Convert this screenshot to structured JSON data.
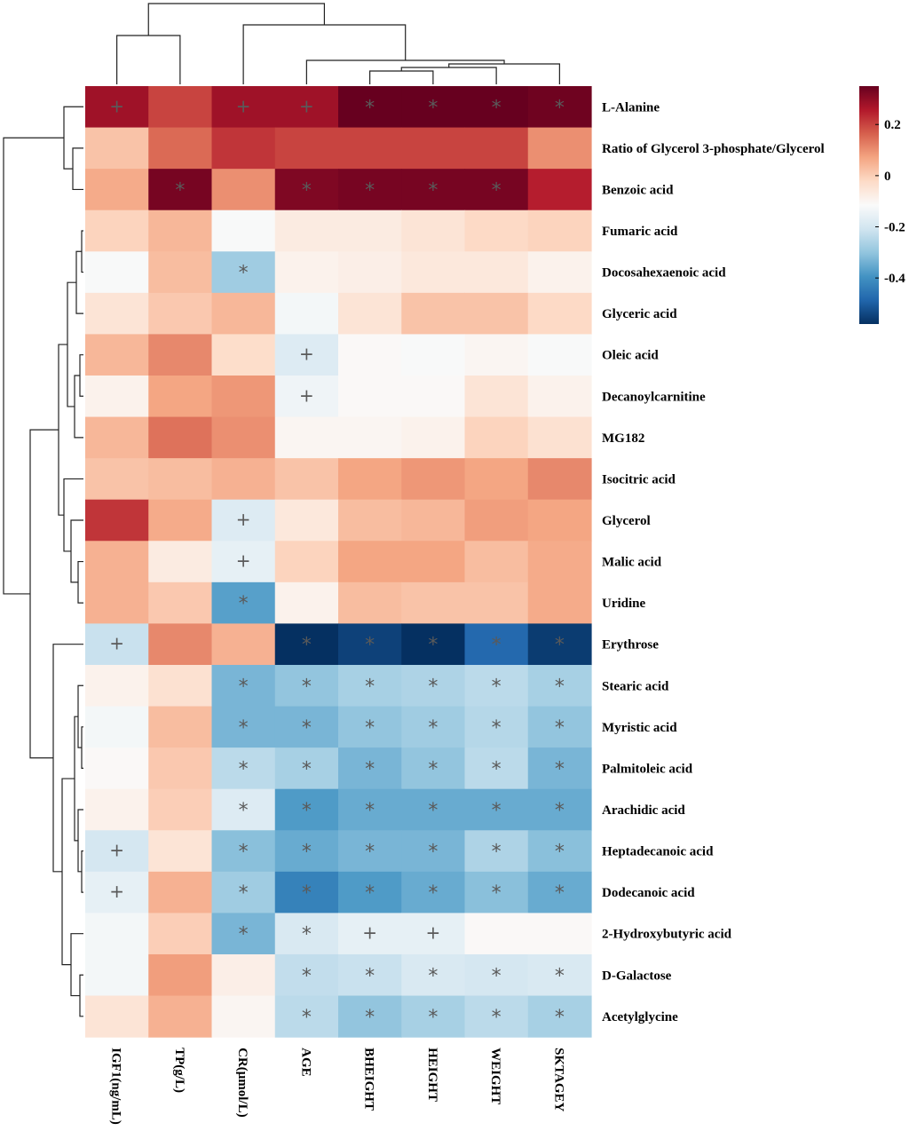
{
  "chart_data": {
    "type": "heatmap",
    "title": "",
    "columns": [
      "IGF1(ng/mL)",
      "TP(g/L)",
      "CR(μmol/L)",
      "AGE",
      "BHEIGHT",
      "HEIGHT",
      "WEIGHT",
      "SKTAGEY"
    ],
    "rows": [
      "L-Alanine",
      "Ratio of Glycerol 3-phosphate/Glycerol",
      "Benzoic acid",
      "Fumaric acid",
      "Docosahexaenoic acid",
      "Glyceric acid",
      "Oleic acid",
      "Decanoylcarnitine",
      "MG182",
      "Isocitric acid",
      "Glycerol",
      "Malic acid",
      "Uridine",
      "Erythrose",
      "Stearic acid",
      "Myristic acid",
      "Palmitoleic acid",
      "Arachidic acid",
      "Heptadecanoic acid",
      "Dodecanoic acid",
      "2-Hydroxybutyric acid",
      "D-Galactose",
      "Acetylglycine"
    ],
    "values": [
      [
        0.28,
        0.2,
        0.28,
        0.28,
        0.35,
        0.35,
        0.35,
        0.34
      ],
      [
        0.02,
        0.15,
        0.22,
        0.2,
        0.2,
        0.2,
        0.2,
        0.1
      ],
      [
        0.06,
        0.33,
        0.1,
        0.32,
        0.33,
        0.33,
        0.33,
        0.25
      ],
      [
        -0.01,
        0.04,
        -0.12,
        -0.07,
        -0.07,
        -0.05,
        -0.02,
        -0.01
      ],
      [
        -0.12,
        0.03,
        -0.28,
        -0.09,
        -0.08,
        -0.06,
        -0.06,
        -0.09
      ],
      [
        -0.05,
        0.01,
        0.04,
        -0.13,
        -0.05,
        0.02,
        0.02,
        -0.02
      ],
      [
        0.04,
        0.11,
        -0.03,
        -0.18,
        -0.11,
        -0.12,
        -0.1,
        -0.12
      ],
      [
        -0.09,
        0.07,
        0.09,
        -0.14,
        -0.11,
        -0.11,
        -0.05,
        -0.09
      ],
      [
        0.04,
        0.14,
        0.1,
        -0.1,
        -0.1,
        -0.09,
        -0.01,
        -0.04
      ],
      [
        0.02,
        0.03,
        0.05,
        0.02,
        0.07,
        0.09,
        0.07,
        0.11
      ],
      [
        0.22,
        0.06,
        -0.18,
        -0.06,
        0.03,
        0.04,
        0.08,
        0.07
      ],
      [
        0.05,
        -0.07,
        -0.16,
        -0.01,
        0.07,
        0.07,
        0.03,
        0.06
      ],
      [
        0.05,
        0.01,
        -0.37,
        -0.09,
        0.03,
        0.02,
        0.02,
        0.06
      ],
      [
        -0.22,
        0.11,
        0.05,
        -0.58,
        -0.55,
        -0.58,
        -0.48,
        -0.56
      ],
      [
        -0.09,
        -0.04,
        -0.33,
        -0.3,
        -0.27,
        -0.26,
        -0.24,
        -0.27
      ],
      [
        -0.13,
        0.03,
        -0.33,
        -0.33,
        -0.3,
        -0.28,
        -0.25,
        -0.3
      ],
      [
        -0.11,
        0.01,
        -0.24,
        -0.27,
        -0.33,
        -0.3,
        -0.24,
        -0.33
      ],
      [
        -0.09,
        0.0,
        -0.18,
        -0.38,
        -0.35,
        -0.35,
        -0.35,
        -0.35
      ],
      [
        -0.2,
        -0.05,
        -0.31,
        -0.35,
        -0.33,
        -0.33,
        -0.26,
        -0.31
      ],
      [
        -0.16,
        0.05,
        -0.28,
        -0.43,
        -0.38,
        -0.35,
        -0.31,
        -0.35
      ],
      [
        -0.13,
        0.0,
        -0.33,
        -0.19,
        -0.16,
        -0.16,
        -0.11,
        -0.11
      ],
      [
        -0.13,
        0.08,
        -0.08,
        -0.23,
        -0.22,
        -0.19,
        -0.2,
        -0.19
      ],
      [
        -0.05,
        0.05,
        -0.1,
        -0.24,
        -0.3,
        -0.27,
        -0.24,
        -0.27
      ]
    ],
    "significance": [
      [
        "+",
        "",
        "+",
        "+",
        "*",
        "*",
        "*",
        "*"
      ],
      [
        "",
        "",
        "",
        "",
        "",
        "",
        "",
        ""
      ],
      [
        "",
        "*",
        "",
        "*",
        "*",
        "*",
        "*",
        ""
      ],
      [
        "",
        "",
        "",
        "",
        "",
        "",
        "",
        ""
      ],
      [
        "",
        "",
        "*",
        "",
        "",
        "",
        "",
        ""
      ],
      [
        "",
        "",
        "",
        "",
        "",
        "",
        "",
        ""
      ],
      [
        "",
        "",
        "",
        "+",
        "",
        "",
        "",
        ""
      ],
      [
        "",
        "",
        "",
        "+",
        "",
        "",
        "",
        ""
      ],
      [
        "",
        "",
        "",
        "",
        "",
        "",
        "",
        ""
      ],
      [
        "",
        "",
        "",
        "",
        "",
        "",
        "",
        ""
      ],
      [
        "",
        "",
        "+",
        "",
        "",
        "",
        "",
        ""
      ],
      [
        "",
        "",
        "+",
        "",
        "",
        "",
        "",
        ""
      ],
      [
        "",
        "",
        "*",
        "",
        "",
        "",
        "",
        ""
      ],
      [
        "+",
        "",
        "",
        "*",
        "*",
        "*",
        "*",
        "*"
      ],
      [
        "",
        "",
        "*",
        "*",
        "*",
        "*",
        "*",
        "*"
      ],
      [
        "",
        "",
        "*",
        "*",
        "*",
        "*",
        "*",
        "*"
      ],
      [
        "",
        "",
        "*",
        "*",
        "*",
        "*",
        "*",
        "*"
      ],
      [
        "",
        "",
        "*",
        "*",
        "*",
        "*",
        "*",
        "*"
      ],
      [
        "+",
        "",
        "*",
        "*",
        "*",
        "*",
        "*",
        "*"
      ],
      [
        "+",
        "",
        "*",
        "*",
        "*",
        "*",
        "*",
        "*"
      ],
      [
        "",
        "",
        "*",
        "*",
        "+",
        "+",
        "",
        ""
      ],
      [
        "",
        "",
        "",
        "*",
        "*",
        "*",
        "*",
        "*"
      ],
      [
        "",
        "",
        "",
        "*",
        "*",
        "*",
        "*",
        "*"
      ]
    ],
    "colorbar": {
      "range": [
        -0.58,
        0.35
      ],
      "ticks": [
        0.2,
        0,
        -0.2,
        -0.4
      ],
      "tick_labels": [
        "0.2",
        "0",
        "-0.2",
        "-0.4"
      ],
      "colors": [
        "#053061",
        "#2166ac",
        "#4393c3",
        "#92c5de",
        "#d1e5f0",
        "#fafafa",
        "#fddbc7",
        "#f4a582",
        "#d6604d",
        "#b2182b",
        "#67001f"
      ]
    },
    "dendrogram_top": "column clustering tree",
    "dendrogram_left": "row clustering tree"
  }
}
